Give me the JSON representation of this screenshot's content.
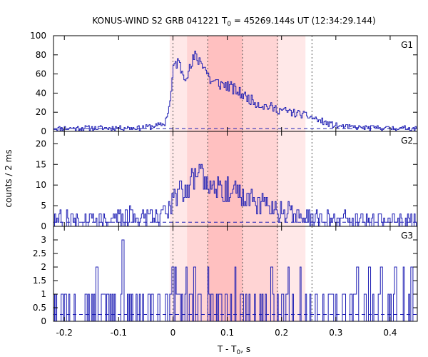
{
  "chart_data": {
    "type": "line",
    "title_prefix": "KONUS-WIND S2 GRB 041221 T",
    "title_sub": "0",
    "title_suffix": " = 45269.144s UT (12:34:29.144)",
    "ylabel": "counts / 2 ms",
    "xlabel_prefix": "T - T",
    "xlabel_sub": "0",
    "xlabel_suffix": ", s",
    "xlim": [
      -0.22,
      0.45
    ],
    "xticks": [
      -0.2,
      -0.1,
      0,
      0.1,
      0.2,
      0.3,
      0.4
    ],
    "xtick_labels": [
      "-0.2",
      "-0.1",
      "0",
      "0.1",
      "0.2",
      "0.3",
      "0.4"
    ],
    "shaded_regions": [
      {
        "x0": -0.006,
        "x1": 0.244,
        "color": "#ffe8e8"
      },
      {
        "x0": 0.026,
        "x1": 0.194,
        "color": "#ffd4d4"
      },
      {
        "x0": 0.064,
        "x1": 0.128,
        "color": "#ffc0c0"
      }
    ],
    "vlines": [
      0.0,
      0.064,
      0.128,
      0.192,
      0.256
    ],
    "line_color": "#1f1fb4",
    "panels": [
      {
        "name": "G1",
        "ylim": [
          0,
          100
        ],
        "yticks": [
          0,
          20,
          40,
          60,
          80,
          100
        ],
        "ytick_labels": [
          "0",
          "20",
          "40",
          "60",
          "80",
          "100"
        ],
        "background": 3,
        "anchors": [
          [
            -0.22,
            3
          ],
          [
            -0.05,
            4
          ],
          [
            -0.03,
            6
          ],
          [
            -0.015,
            8
          ],
          [
            -0.005,
            30
          ],
          [
            0.0,
            60
          ],
          [
            0.004,
            72
          ],
          [
            0.01,
            72
          ],
          [
            0.02,
            60
          ],
          [
            0.03,
            62
          ],
          [
            0.04,
            78
          ],
          [
            0.055,
            72
          ],
          [
            0.07,
            52
          ],
          [
            0.1,
            48
          ],
          [
            0.13,
            38
          ],
          [
            0.16,
            28
          ],
          [
            0.2,
            22
          ],
          [
            0.25,
            16
          ],
          [
            0.28,
            9
          ],
          [
            0.3,
            6
          ],
          [
            0.33,
            4
          ],
          [
            0.45,
            3
          ]
        ],
        "noise": 4,
        "seed": 11
      },
      {
        "name": "G2",
        "ylim": [
          0,
          23
        ],
        "yticks": [
          0,
          5,
          10,
          15,
          20
        ],
        "ytick_labels": [
          "0",
          "5",
          "10",
          "15",
          "20"
        ],
        "background": 1,
        "anchors": [
          [
            -0.22,
            1.5
          ],
          [
            -0.1,
            2
          ],
          [
            -0.05,
            2.5
          ],
          [
            -0.02,
            3
          ],
          [
            -0.005,
            5
          ],
          [
            0.0,
            7
          ],
          [
            0.02,
            9
          ],
          [
            0.05,
            13
          ],
          [
            0.08,
            10
          ],
          [
            0.12,
            8
          ],
          [
            0.15,
            6
          ],
          [
            0.2,
            3.5
          ],
          [
            0.25,
            2
          ],
          [
            0.3,
            1.5
          ],
          [
            0.45,
            1
          ]
        ],
        "noise": 4,
        "seed": 27
      },
      {
        "name": "G3",
        "ylim": [
          0,
          3.5
        ],
        "yticks": [
          0,
          0.5,
          1,
          1.5,
          2,
          2.5,
          3
        ],
        "ytick_labels": [
          "0",
          "0.5",
          "1",
          "1.5",
          "2",
          "2.5",
          "3"
        ],
        "background": 0.25,
        "counts_probability": 0.3,
        "seed": 5,
        "spikes": [
          [
            -0.092,
            3
          ],
          [
            -0.14,
            2
          ],
          [
            0.0,
            2
          ],
          [
            0.005,
            2
          ],
          [
            0.025,
            2
          ],
          [
            0.04,
            2
          ],
          [
            0.065,
            2
          ],
          [
            0.115,
            2
          ],
          [
            0.182,
            2
          ],
          [
            0.213,
            2
          ],
          [
            0.235,
            2
          ],
          [
            0.34,
            2
          ],
          [
            0.362,
            2
          ],
          [
            0.384,
            2
          ],
          [
            0.41,
            2
          ],
          [
            0.425,
            2
          ],
          [
            0.44,
            2
          ]
        ]
      }
    ]
  }
}
